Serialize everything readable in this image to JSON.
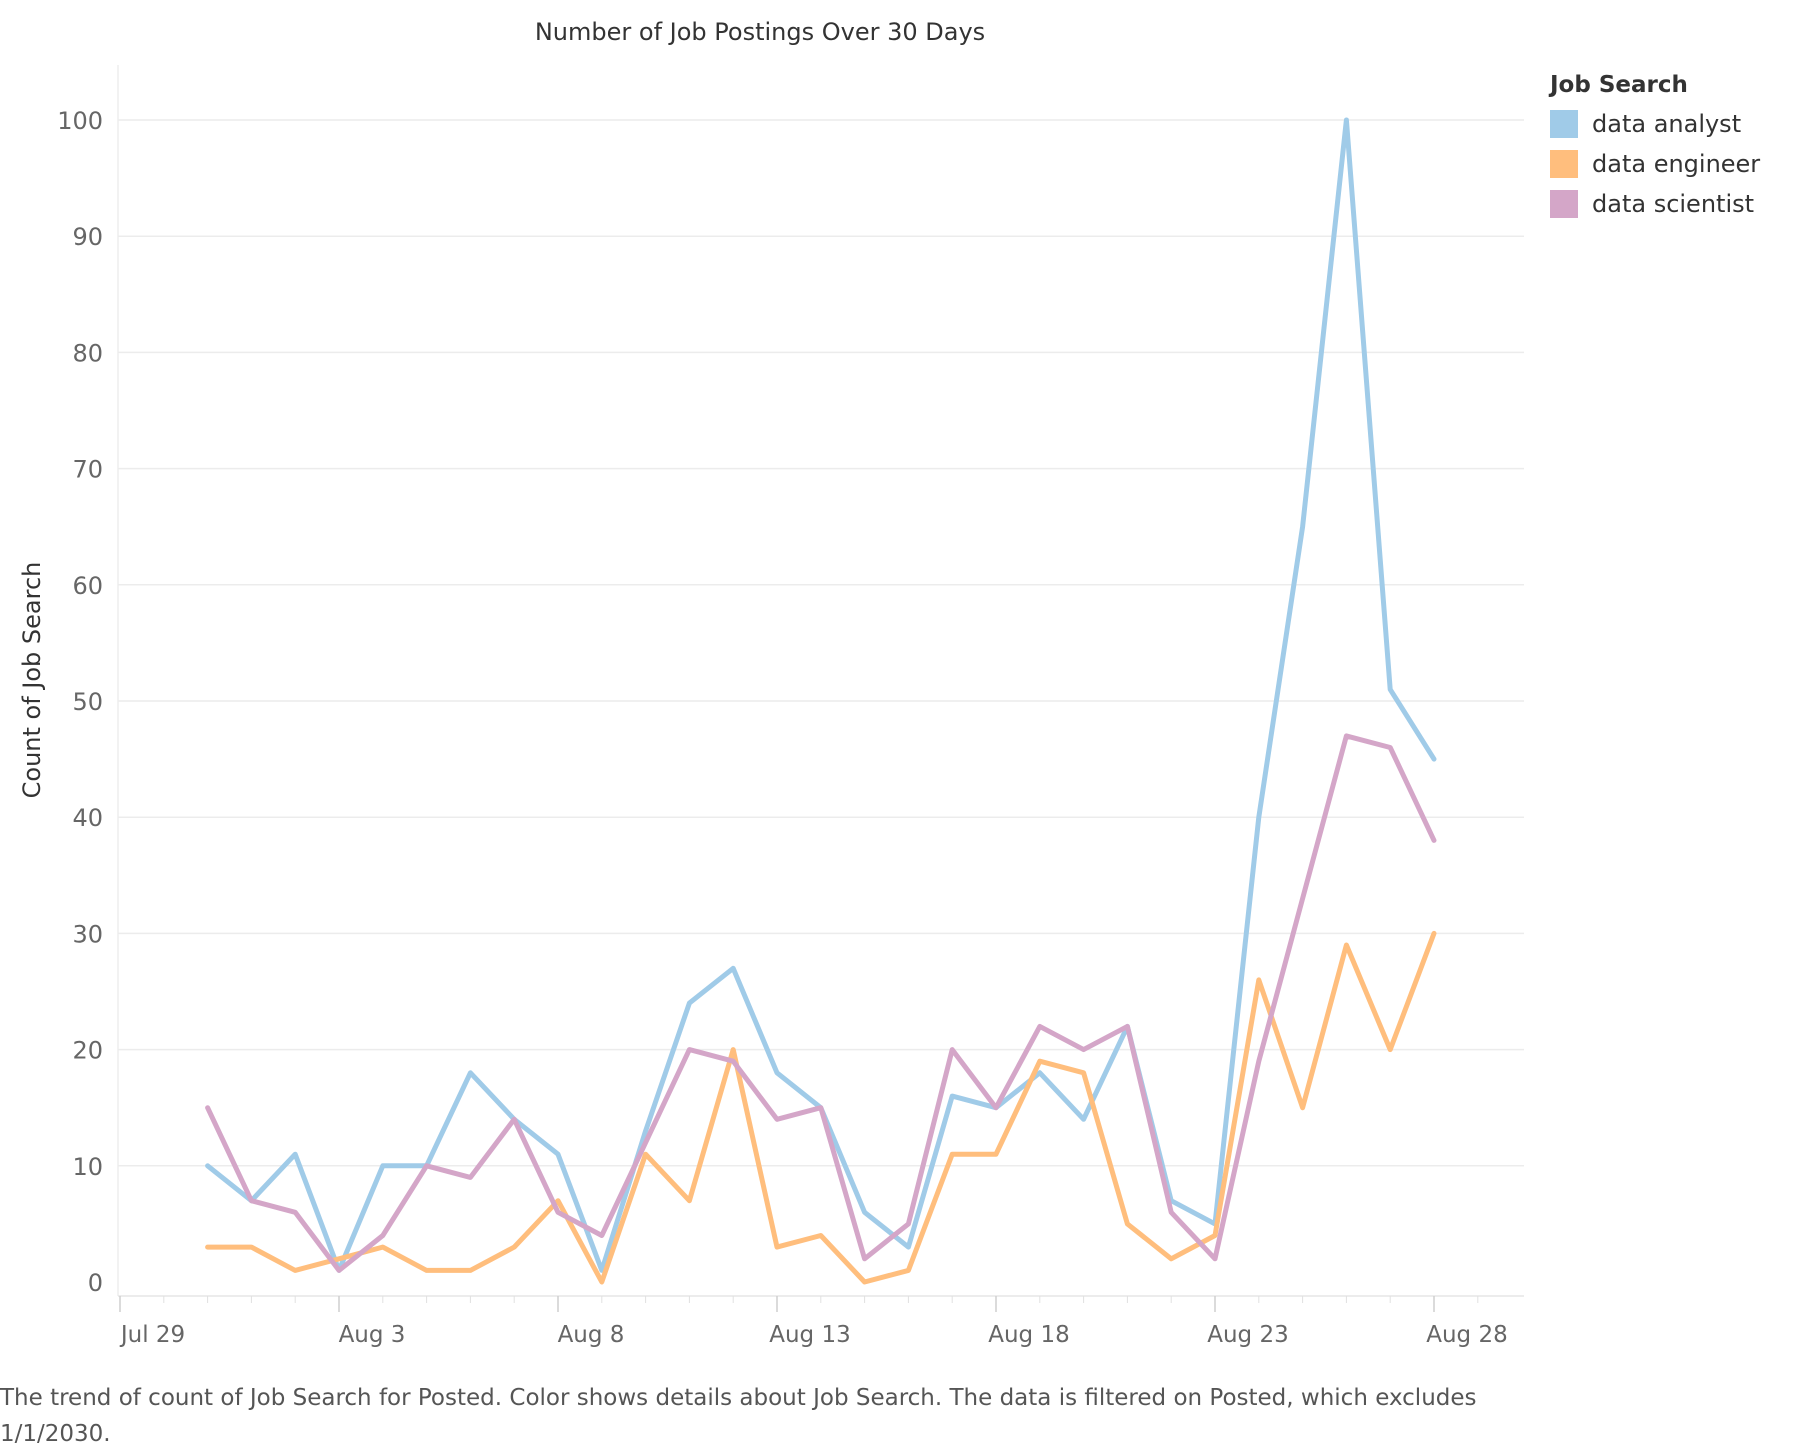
{
  "chart_data": {
    "type": "line",
    "title": "Number of Job Postings Over 30 Days",
    "ylabel": "Count of Job Search",
    "xlabel": "",
    "ylim": [
      0,
      100
    ],
    "yticks": [
      0,
      10,
      20,
      30,
      40,
      50,
      60,
      70,
      80,
      90,
      100
    ],
    "x_ticks": [
      "Jul 29",
      "Aug 3",
      "Aug 8",
      "Aug 13",
      "Aug 18",
      "Aug 23",
      "Aug 28"
    ],
    "x": [
      "Jul 31",
      "Aug 1",
      "Aug 2",
      "Aug 3",
      "Aug 4",
      "Aug 5",
      "Aug 6",
      "Aug 7",
      "Aug 8",
      "Aug 9",
      "Aug 10",
      "Aug 11",
      "Aug 12",
      "Aug 13",
      "Aug 14",
      "Aug 15",
      "Aug 16",
      "Aug 17",
      "Aug 18",
      "Aug 19",
      "Aug 20",
      "Aug 21",
      "Aug 22",
      "Aug 23",
      "Aug 24",
      "Aug 25",
      "Aug 26",
      "Aug 27",
      "Aug 28"
    ],
    "legend_title": "Job Search",
    "legend_position": "top-right",
    "grid": true,
    "series": [
      {
        "name": "data analyst",
        "color": "#a0cbe8",
        "values": [
          10,
          7,
          11,
          1,
          10,
          10,
          18,
          14,
          11,
          1,
          13,
          24,
          27,
          18,
          15,
          6,
          3,
          16,
          15,
          18,
          14,
          22,
          7,
          5,
          40,
          65,
          100,
          51,
          45
        ]
      },
      {
        "name": "data engineer",
        "color": "#ffbe7d",
        "values": [
          3,
          3,
          1,
          2,
          3,
          1,
          1,
          3,
          7,
          0,
          11,
          7,
          20,
          3,
          4,
          0,
          1,
          11,
          11,
          19,
          18,
          5,
          2,
          4,
          26,
          15,
          29,
          20,
          30
        ]
      },
      {
        "name": "data scientist",
        "color": "#d4a6c8",
        "values": [
          15,
          7,
          6,
          1,
          4,
          10,
          9,
          14,
          6,
          4,
          12,
          20,
          19,
          14,
          15,
          2,
          5,
          20,
          15,
          22,
          20,
          22,
          6,
          2,
          19,
          33,
          47,
          46,
          38
        ]
      }
    ]
  },
  "caption": "The trend of count of Job Search for Posted.  Color shows details about Job Search. The data is filtered on Posted, which excludes 1/1/2030."
}
